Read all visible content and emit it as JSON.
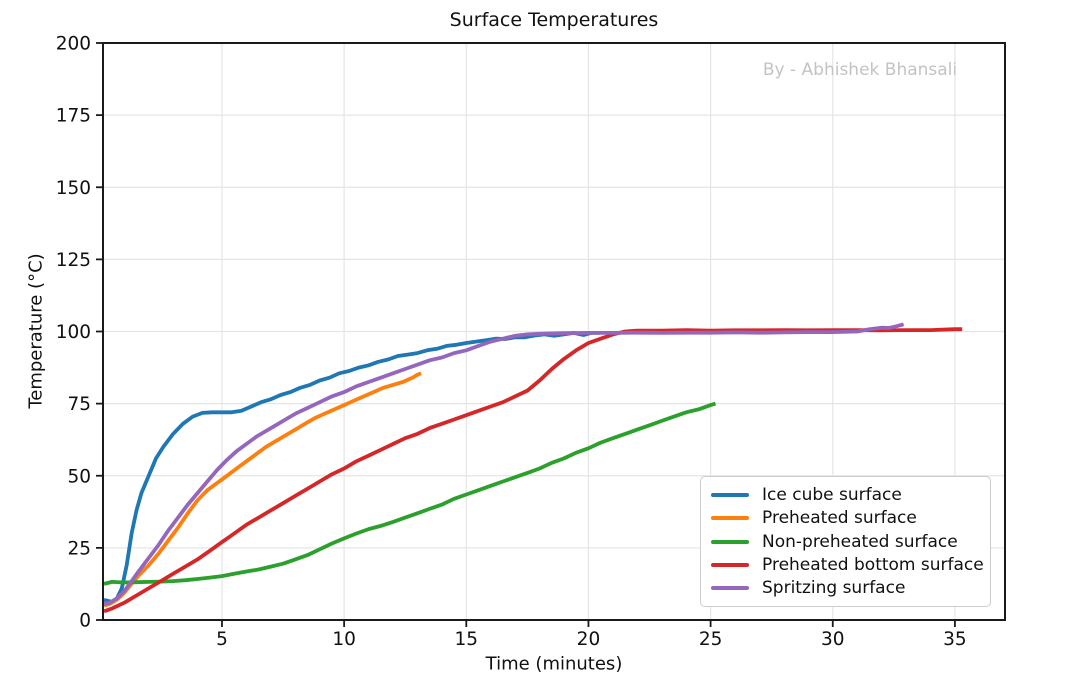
{
  "chart_data": {
    "type": "line",
    "title": "Surface Temperatures",
    "watermark": "By - Abhishek Bhansali",
    "xlabel": "Time (minutes)",
    "ylabel": "Temperature (°C)",
    "xlim": [
      0.13,
      37.05
    ],
    "ylim": [
      0,
      200
    ],
    "xticks": [
      5,
      10,
      15,
      20,
      25,
      30,
      35
    ],
    "yticks": [
      0,
      25,
      50,
      75,
      100,
      125,
      150,
      175,
      200
    ],
    "grid": true,
    "grid_color": "#e5e5e5",
    "spine_color": "#1a1a1a",
    "legend_position": "lower right",
    "legend_entries": [
      "Ice cube surface",
      "Preheated surface",
      "Non-preheated surface",
      "Preheated bottom surface",
      "Spritzing surface"
    ],
    "series": [
      {
        "name": "Ice cube surface",
        "color": "#1f77b4",
        "points": [
          [
            0.17,
            7
          ],
          [
            0.35,
            6.6
          ],
          [
            0.5,
            6.3
          ],
          [
            0.7,
            7.5
          ],
          [
            0.9,
            11
          ],
          [
            1.1,
            19
          ],
          [
            1.3,
            30
          ],
          [
            1.5,
            38
          ],
          [
            1.7,
            44
          ],
          [
            2,
            50
          ],
          [
            2.3,
            56
          ],
          [
            2.6,
            60
          ],
          [
            3,
            64.5
          ],
          [
            3.4,
            68
          ],
          [
            3.8,
            70.5
          ],
          [
            4.2,
            71.8
          ],
          [
            4.6,
            72
          ],
          [
            5,
            72
          ],
          [
            5.4,
            72
          ],
          [
            5.8,
            72.5
          ],
          [
            6.2,
            74
          ],
          [
            6.6,
            75.5
          ],
          [
            7,
            76.5
          ],
          [
            7.4,
            78
          ],
          [
            7.8,
            79
          ],
          [
            8.2,
            80.5
          ],
          [
            8.6,
            81.5
          ],
          [
            9,
            83
          ],
          [
            9.4,
            84
          ],
          [
            9.8,
            85.5
          ],
          [
            10.2,
            86.3
          ],
          [
            10.6,
            87.5
          ],
          [
            11,
            88.3
          ],
          [
            11.4,
            89.5
          ],
          [
            11.8,
            90.3
          ],
          [
            12.2,
            91.5
          ],
          [
            12.6,
            92
          ],
          [
            13,
            92.5
          ],
          [
            13.4,
            93.5
          ],
          [
            13.8,
            94
          ],
          [
            14.2,
            95
          ],
          [
            14.6,
            95.4
          ],
          [
            15,
            96
          ],
          [
            15.4,
            96.5
          ],
          [
            15.8,
            97
          ],
          [
            16.2,
            97.5
          ],
          [
            16.6,
            97.4
          ],
          [
            17,
            98
          ],
          [
            17.4,
            98
          ],
          [
            17.8,
            98.6
          ],
          [
            18.2,
            99
          ],
          [
            18.6,
            98.5
          ],
          [
            19,
            99
          ],
          [
            19.4,
            99.5
          ],
          [
            19.8,
            98.8
          ],
          [
            20.1,
            99.5
          ],
          [
            20.45,
            99.5
          ]
        ]
      },
      {
        "name": "Preheated surface",
        "color": "#ff7f0e",
        "points": [
          [
            0.17,
            5
          ],
          [
            0.4,
            5.5
          ],
          [
            0.7,
            7
          ],
          [
            1,
            9.5
          ],
          [
            1.3,
            12.5
          ],
          [
            1.6,
            15.5
          ],
          [
            2,
            19
          ],
          [
            2.4,
            23
          ],
          [
            2.8,
            27.5
          ],
          [
            3.2,
            32
          ],
          [
            3.6,
            37
          ],
          [
            4,
            41.5
          ],
          [
            4.4,
            45
          ],
          [
            4.8,
            47.5
          ],
          [
            5.2,
            50
          ],
          [
            5.6,
            52.5
          ],
          [
            6,
            55
          ],
          [
            6.4,
            57.5
          ],
          [
            6.8,
            60
          ],
          [
            7.2,
            62
          ],
          [
            7.6,
            64
          ],
          [
            8,
            66
          ],
          [
            8.4,
            68
          ],
          [
            8.8,
            70
          ],
          [
            9.2,
            71.5
          ],
          [
            9.6,
            73
          ],
          [
            10,
            74.5
          ],
          [
            10.4,
            76
          ],
          [
            10.8,
            77.5
          ],
          [
            11.2,
            79
          ],
          [
            11.6,
            80.5
          ],
          [
            12,
            81.5
          ],
          [
            12.4,
            82.5
          ],
          [
            12.8,
            84
          ],
          [
            13,
            85
          ],
          [
            13.15,
            85.5
          ]
        ]
      },
      {
        "name": "Non-preheated surface",
        "color": "#2ca02c",
        "points": [
          [
            0.17,
            12.5
          ],
          [
            0.5,
            13.2
          ],
          [
            1,
            13
          ],
          [
            1.5,
            13.1
          ],
          [
            2,
            13.2
          ],
          [
            2.5,
            13.3
          ],
          [
            3,
            13.5
          ],
          [
            3.5,
            13.8
          ],
          [
            4,
            14.2
          ],
          [
            4.5,
            14.7
          ],
          [
            5,
            15.2
          ],
          [
            5.5,
            16
          ],
          [
            6,
            16.8
          ],
          [
            6.5,
            17.5
          ],
          [
            7,
            18.5
          ],
          [
            7.5,
            19.5
          ],
          [
            8,
            21
          ],
          [
            8.5,
            22.5
          ],
          [
            9,
            24.5
          ],
          [
            9.5,
            26.5
          ],
          [
            10,
            28.3
          ],
          [
            10.5,
            30
          ],
          [
            11,
            31.5
          ],
          [
            11.5,
            32.6
          ],
          [
            12,
            34
          ],
          [
            12.5,
            35.5
          ],
          [
            13,
            37
          ],
          [
            13.5,
            38.5
          ],
          [
            14,
            40
          ],
          [
            14.5,
            42
          ],
          [
            15,
            43.5
          ],
          [
            15.5,
            45
          ],
          [
            16,
            46.5
          ],
          [
            16.5,
            48
          ],
          [
            17,
            49.5
          ],
          [
            17.5,
            51
          ],
          [
            18,
            52.5
          ],
          [
            18.5,
            54.5
          ],
          [
            19,
            56
          ],
          [
            19.5,
            58
          ],
          [
            20,
            59.5
          ],
          [
            20.5,
            61.5
          ],
          [
            21,
            63
          ],
          [
            21.5,
            64.5
          ],
          [
            22,
            66
          ],
          [
            22.5,
            67.5
          ],
          [
            23,
            69
          ],
          [
            23.5,
            70.5
          ],
          [
            24,
            72
          ],
          [
            24.5,
            73
          ],
          [
            25,
            74.5
          ],
          [
            25.2,
            75
          ]
        ]
      },
      {
        "name": "Preheated bottom surface",
        "color": "#d62728",
        "points": [
          [
            0.17,
            3
          ],
          [
            0.5,
            4
          ],
          [
            1,
            6
          ],
          [
            1.5,
            8.5
          ],
          [
            2,
            11
          ],
          [
            2.5,
            13.5
          ],
          [
            3,
            16
          ],
          [
            3.5,
            18.5
          ],
          [
            4,
            21
          ],
          [
            4.5,
            24
          ],
          [
            5,
            27
          ],
          [
            5.5,
            30
          ],
          [
            6,
            33
          ],
          [
            6.5,
            35.5
          ],
          [
            7,
            38
          ],
          [
            7.5,
            40.5
          ],
          [
            8,
            43
          ],
          [
            8.5,
            45.5
          ],
          [
            9,
            48
          ],
          [
            9.5,
            50.5
          ],
          [
            10,
            52.5
          ],
          [
            10.5,
            55
          ],
          [
            11,
            57
          ],
          [
            11.5,
            59
          ],
          [
            12,
            61
          ],
          [
            12.5,
            63
          ],
          [
            13,
            64.5
          ],
          [
            13.5,
            66.5
          ],
          [
            14,
            68
          ],
          [
            14.5,
            69.5
          ],
          [
            15,
            71
          ],
          [
            15.5,
            72.5
          ],
          [
            16,
            74
          ],
          [
            16.5,
            75.5
          ],
          [
            17,
            77.5
          ],
          [
            17.5,
            79.5
          ],
          [
            18,
            83
          ],
          [
            18.5,
            87
          ],
          [
            19,
            90.5
          ],
          [
            19.5,
            93.5
          ],
          [
            20,
            96
          ],
          [
            20.5,
            97.5
          ],
          [
            21,
            99
          ],
          [
            21.5,
            100
          ],
          [
            22,
            100.3
          ],
          [
            23,
            100.3
          ],
          [
            24,
            100.5
          ],
          [
            25,
            100.3
          ],
          [
            26,
            100.4
          ],
          [
            27,
            100.4
          ],
          [
            28,
            100.5
          ],
          [
            29,
            100.4
          ],
          [
            30,
            100.5
          ],
          [
            31,
            100.5
          ],
          [
            32,
            100.4
          ],
          [
            33,
            100.5
          ],
          [
            34,
            100.5
          ],
          [
            35,
            100.8
          ],
          [
            35.3,
            100.8
          ]
        ]
      },
      {
        "name": "Spritzing surface",
        "color": "#9467bd",
        "points": [
          [
            0.17,
            5.5
          ],
          [
            0.4,
            6
          ],
          [
            0.7,
            7.5
          ],
          [
            1,
            10
          ],
          [
            1.3,
            13.5
          ],
          [
            1.6,
            17
          ],
          [
            2,
            21.5
          ],
          [
            2.4,
            26
          ],
          [
            2.8,
            31
          ],
          [
            3.2,
            35.5
          ],
          [
            3.6,
            40
          ],
          [
            4,
            44
          ],
          [
            4.4,
            48
          ],
          [
            4.8,
            52
          ],
          [
            5.2,
            55.5
          ],
          [
            5.6,
            58.5
          ],
          [
            6,
            61
          ],
          [
            6.4,
            63.5
          ],
          [
            6.8,
            65.5
          ],
          [
            7.2,
            67.5
          ],
          [
            7.6,
            69.5
          ],
          [
            8,
            71.5
          ],
          [
            8.5,
            73.5
          ],
          [
            9,
            75.5
          ],
          [
            9.5,
            77.5
          ],
          [
            10,
            79
          ],
          [
            10.5,
            81
          ],
          [
            11,
            82.5
          ],
          [
            11.5,
            84
          ],
          [
            12,
            85.5
          ],
          [
            12.5,
            87
          ],
          [
            13,
            88.5
          ],
          [
            13.5,
            90
          ],
          [
            14,
            91
          ],
          [
            14.5,
            92.5
          ],
          [
            15,
            93.5
          ],
          [
            15.5,
            95
          ],
          [
            16,
            96.5
          ],
          [
            16.5,
            97.5
          ],
          [
            17,
            98.5
          ],
          [
            17.5,
            99
          ],
          [
            18,
            99.2
          ],
          [
            19,
            99.4
          ],
          [
            20,
            99.5
          ],
          [
            21,
            99.5
          ],
          [
            22,
            99.6
          ],
          [
            23,
            99.5
          ],
          [
            24,
            99.6
          ],
          [
            25,
            99.6
          ],
          [
            26,
            99.7
          ],
          [
            27,
            99.6
          ],
          [
            28,
            99.7
          ],
          [
            29,
            99.8
          ],
          [
            30,
            99.8
          ],
          [
            31,
            100
          ],
          [
            31.5,
            100.8
          ],
          [
            32,
            101.3
          ],
          [
            32.3,
            101.2
          ],
          [
            32.6,
            101.8
          ],
          [
            32.9,
            102.5
          ]
        ]
      }
    ]
  }
}
